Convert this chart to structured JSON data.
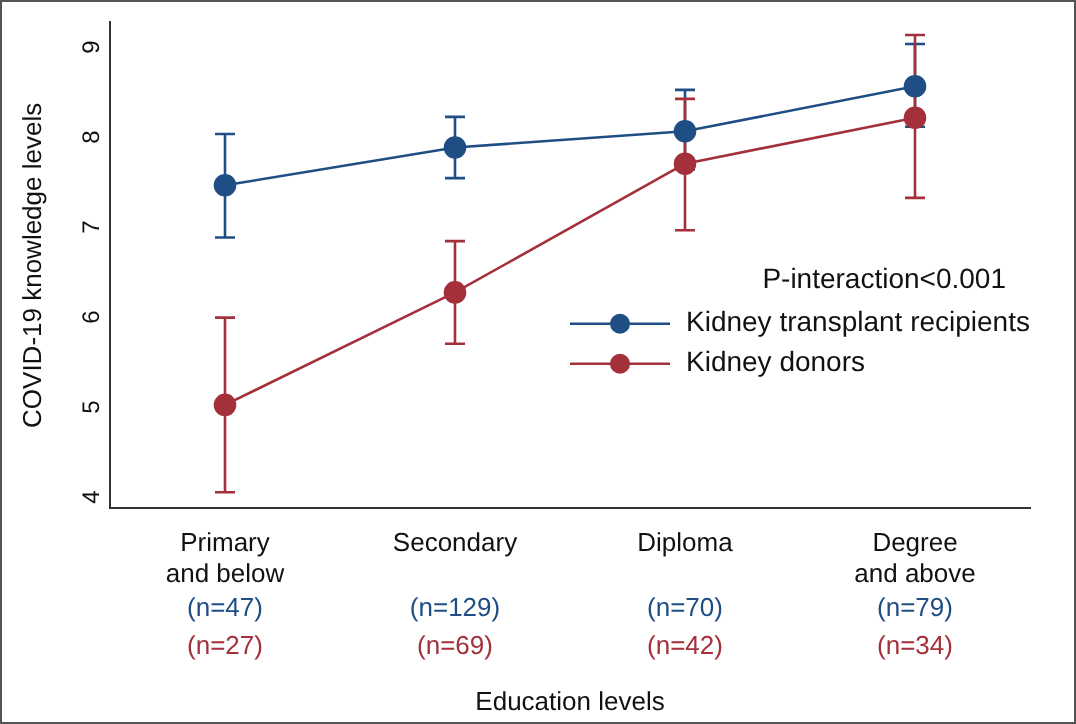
{
  "chart_data": {
    "type": "line",
    "xlabel": "Education levels",
    "ylabel": "COVID-19 knowledge levels",
    "categories": [
      "Primary and below",
      "Secondary",
      "Diploma",
      "Degree and above"
    ],
    "series": [
      {
        "name": "Kidney transplant recipients",
        "color": "#1f4e85",
        "values": [
          7.39,
          7.81,
          7.99,
          8.49
        ],
        "errors": [
          [
            6.81,
            7.96
          ],
          [
            7.47,
            8.15
          ],
          [
            7.57,
            8.45
          ],
          [
            8.04,
            8.96
          ]
        ]
      },
      {
        "name": "Kidney donors",
        "color": "#a3303a",
        "values": [
          4.95,
          6.2,
          7.63,
          8.14
        ],
        "errors": [
          [
            3.98,
            5.92
          ],
          [
            5.63,
            6.77
          ],
          [
            6.89,
            8.35
          ],
          [
            7.25,
            9.06
          ]
        ]
      }
    ],
    "ylim": [
      3.8,
      9.2
    ],
    "yticks": [
      4,
      5,
      6,
      7,
      8,
      9
    ],
    "grid": false,
    "legend": "right",
    "marker": "circle",
    "line_style": "solid",
    "annotations": [
      "P-interaction<0.001",
      "(n=47)",
      "(n=27)",
      "(n=129)",
      "(n=69)",
      "(n=70)",
      "(n=42)",
      "(n=79)",
      "(n=34)"
    ]
  }
}
